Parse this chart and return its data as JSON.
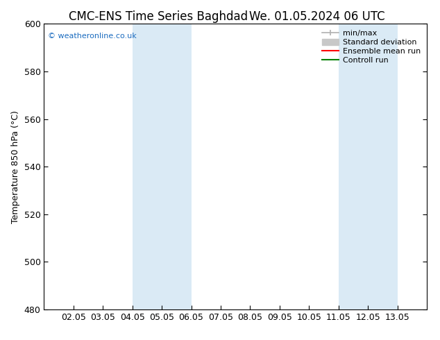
{
  "title_left": "CMC-ENS Time Series Baghdad",
  "title_right": "We. 01.05.2024 06 UTC",
  "ylabel": "Temperature 850 hPa (°C)",
  "ylim": [
    480,
    600
  ],
  "yticks": [
    480,
    500,
    520,
    540,
    560,
    580,
    600
  ],
  "xtick_labels": [
    "02.05",
    "03.05",
    "04.05",
    "05.05",
    "06.05",
    "07.05",
    "08.05",
    "09.05",
    "10.05",
    "11.05",
    "12.05",
    "13.05"
  ],
  "xtick_positions": [
    1,
    2,
    3,
    4,
    5,
    6,
    7,
    8,
    9,
    10,
    11,
    12
  ],
  "xlim": [
    0,
    13
  ],
  "shade_bands": [
    {
      "x_start": 3,
      "x_end": 5
    },
    {
      "x_start": 10,
      "x_end": 12
    }
  ],
  "shade_color": "#daeaf5",
  "watermark": "© weatheronline.co.uk",
  "watermark_color": "#1a6bbf",
  "bg_color": "#ffffff",
  "title_fontsize": 12,
  "tick_fontsize": 9,
  "ylabel_fontsize": 9,
  "watermark_fontsize": 8,
  "legend_fontsize": 8,
  "minmax_color": "#b0b0b0",
  "std_color": "#c8c8c8",
  "ensemble_color": "#ff0000",
  "control_color": "#008000"
}
